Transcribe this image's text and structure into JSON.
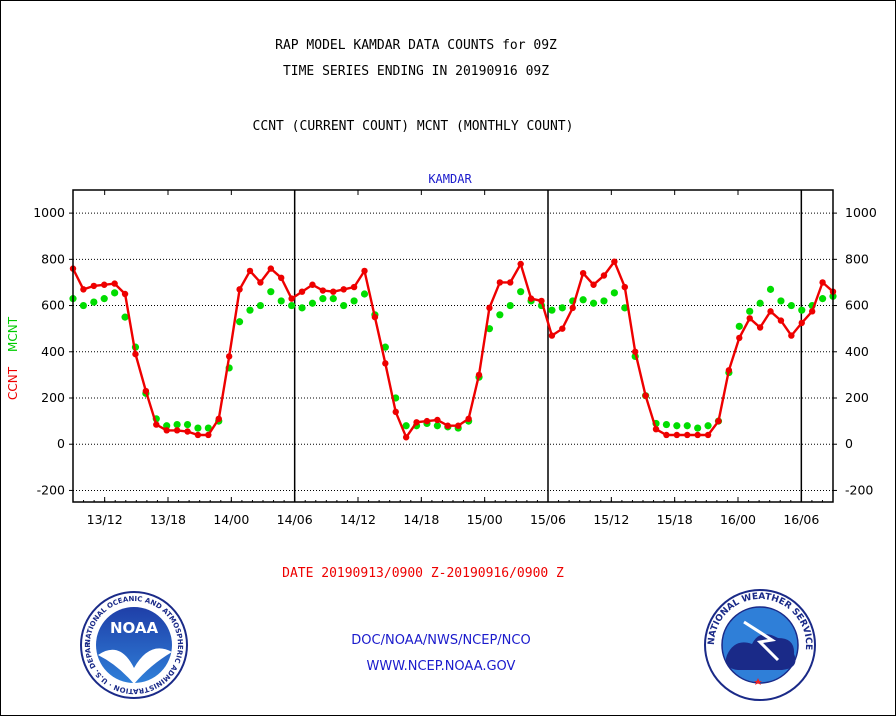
{
  "titles": {
    "line1": "RAP MODEL KAMDAR DATA COUNTS for 09Z",
    "line2": "TIME SERIES ENDING IN 20190916 09Z",
    "line3": "CCNT (CURRENT COUNT) MCNT (MONTHLY COUNT)",
    "station": "KAMDAR"
  },
  "axis": {
    "ylabel_ccnt": "CCNT",
    "ylabel_mcnt": "MCNT",
    "date_range": "DATE 20190913/0900 Z-20190916/0900 Z"
  },
  "footer": {
    "org": "DOC/NOAA/NWS/NCEP/NCO",
    "url": "WWW.NCEP.NOAA.GOV"
  },
  "logos": {
    "noaa": "NOAA",
    "noaa_ring": "NATIONAL OCEANIC AND ATMOSPHERIC ADMINISTRATION · U.S. DEPARTMENT OF COMMERCE",
    "nws_ring": "NATIONAL WEATHER SERVICE"
  },
  "colors": {
    "ccnt": "#ee0000",
    "mcnt": "#00dd00",
    "title_blue": "#1a1acc"
  },
  "chart_data": {
    "type": "line",
    "title": "RAP MODEL KAMDAR DATA COUNTS for 09Z",
    "subtitle": "TIME SERIES ENDING IN 20190916 09Z",
    "xlabel": "DATE 20190913/0900 Z-20190916/0900 Z",
    "ylabel": "CCNT  MCNT",
    "x_unit": "hours from 20190913 09Z",
    "xlim": [
      0,
      72
    ],
    "ylim": [
      -250,
      1100
    ],
    "yticks": [
      -200,
      0,
      200,
      400,
      600,
      800,
      1000
    ],
    "xtick_hours": [
      3,
      9,
      15,
      21,
      27,
      33,
      39,
      45,
      51,
      57,
      63,
      69
    ],
    "xtick_labels": [
      "13/12",
      "13/18",
      "14/00",
      "14/06",
      "14/12",
      "14/18",
      "15/00",
      "15/06",
      "15/12",
      "15/18",
      "16/00",
      "16/06"
    ],
    "vlines_hours": [
      21,
      45,
      69
    ],
    "grid": true,
    "series": [
      {
        "name": "CCNT",
        "color": "#ee0000",
        "values": [
          760,
          670,
          685,
          690,
          695,
          650,
          390,
          230,
          85,
          60,
          60,
          55,
          40,
          40,
          110,
          380,
          670,
          750,
          700,
          760,
          720,
          630,
          660,
          690,
          665,
          660,
          670,
          680,
          750,
          550,
          350,
          140,
          30,
          95,
          100,
          105,
          80,
          80,
          110,
          300,
          590,
          700,
          700,
          780,
          630,
          620,
          470,
          500,
          590,
          740,
          690,
          730,
          790,
          680,
          400,
          210,
          65,
          40,
          40,
          40,
          40,
          40,
          100,
          320,
          460,
          545,
          505,
          575,
          535,
          470,
          525,
          575,
          700,
          660
        ]
      },
      {
        "name": "MCNT",
        "color": "#00dd00",
        "values": [
          630,
          600,
          615,
          630,
          655,
          550,
          420,
          220,
          110,
          80,
          85,
          85,
          70,
          70,
          100,
          330,
          530,
          580,
          600,
          660,
          620,
          600,
          590,
          610,
          630,
          630,
          600,
          620,
          650,
          560,
          420,
          200,
          80,
          80,
          90,
          80,
          75,
          70,
          100,
          290,
          500,
          560,
          600,
          660,
          620,
          600,
          580,
          590,
          620,
          625,
          610,
          620,
          655,
          590,
          380,
          210,
          90,
          85,
          80,
          80,
          70,
          80,
          100,
          310,
          510,
          575,
          610,
          670,
          620,
          600,
          580,
          600,
          630,
          640
        ]
      }
    ]
  }
}
